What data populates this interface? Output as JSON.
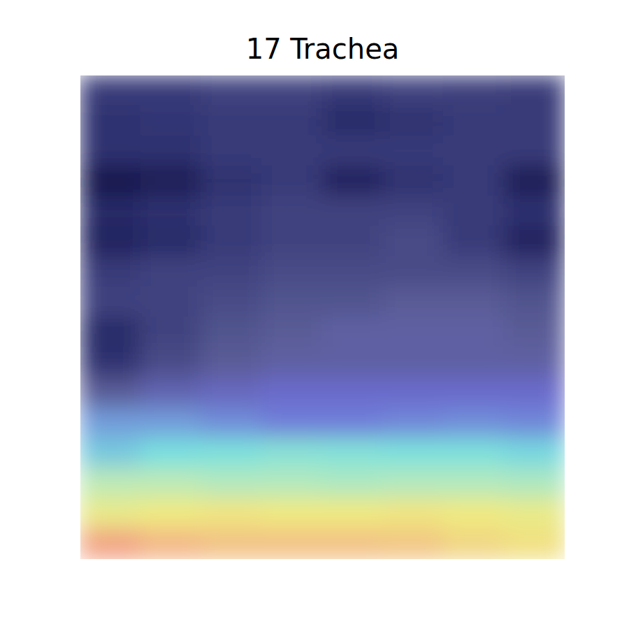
{
  "chart_data": {
    "type": "heatmap",
    "title": "17 Trachea",
    "tick_labels": false,
    "grid": false,
    "zlim": [
      0,
      1
    ],
    "values": [
      [
        0.12,
        0.12,
        0.14,
        0.14,
        0.12,
        0.14,
        0.13,
        0.12
      ],
      [
        0.1,
        0.11,
        0.12,
        0.12,
        0.08,
        0.1,
        0.12,
        0.12
      ],
      [
        0.1,
        0.1,
        0.12,
        0.12,
        0.12,
        0.12,
        0.12,
        0.12
      ],
      [
        0.02,
        0.04,
        0.1,
        0.12,
        0.06,
        0.1,
        0.12,
        0.04
      ],
      [
        0.08,
        0.1,
        0.12,
        0.14,
        0.14,
        0.14,
        0.12,
        0.1
      ],
      [
        0.06,
        0.08,
        0.12,
        0.14,
        0.14,
        0.16,
        0.12,
        0.06
      ],
      [
        0.12,
        0.14,
        0.14,
        0.16,
        0.16,
        0.16,
        0.16,
        0.14
      ],
      [
        0.14,
        0.14,
        0.16,
        0.18,
        0.18,
        0.2,
        0.2,
        0.18
      ],
      [
        0.08,
        0.14,
        0.18,
        0.2,
        0.22,
        0.22,
        0.22,
        0.2
      ],
      [
        0.1,
        0.16,
        0.2,
        0.22,
        0.22,
        0.22,
        0.22,
        0.22
      ],
      [
        0.2,
        0.24,
        0.26,
        0.28,
        0.28,
        0.28,
        0.28,
        0.28
      ],
      [
        0.36,
        0.36,
        0.34,
        0.32,
        0.32,
        0.33,
        0.34,
        0.33
      ],
      [
        0.42,
        0.45,
        0.46,
        0.48,
        0.47,
        0.46,
        0.46,
        0.44
      ],
      [
        0.58,
        0.58,
        0.56,
        0.56,
        0.55,
        0.56,
        0.56,
        0.55
      ],
      [
        0.7,
        0.72,
        0.73,
        0.72,
        0.72,
        0.73,
        0.72,
        0.7
      ],
      [
        0.86,
        0.82,
        0.8,
        0.8,
        0.8,
        0.79,
        0.76,
        0.74
      ]
    ]
  }
}
